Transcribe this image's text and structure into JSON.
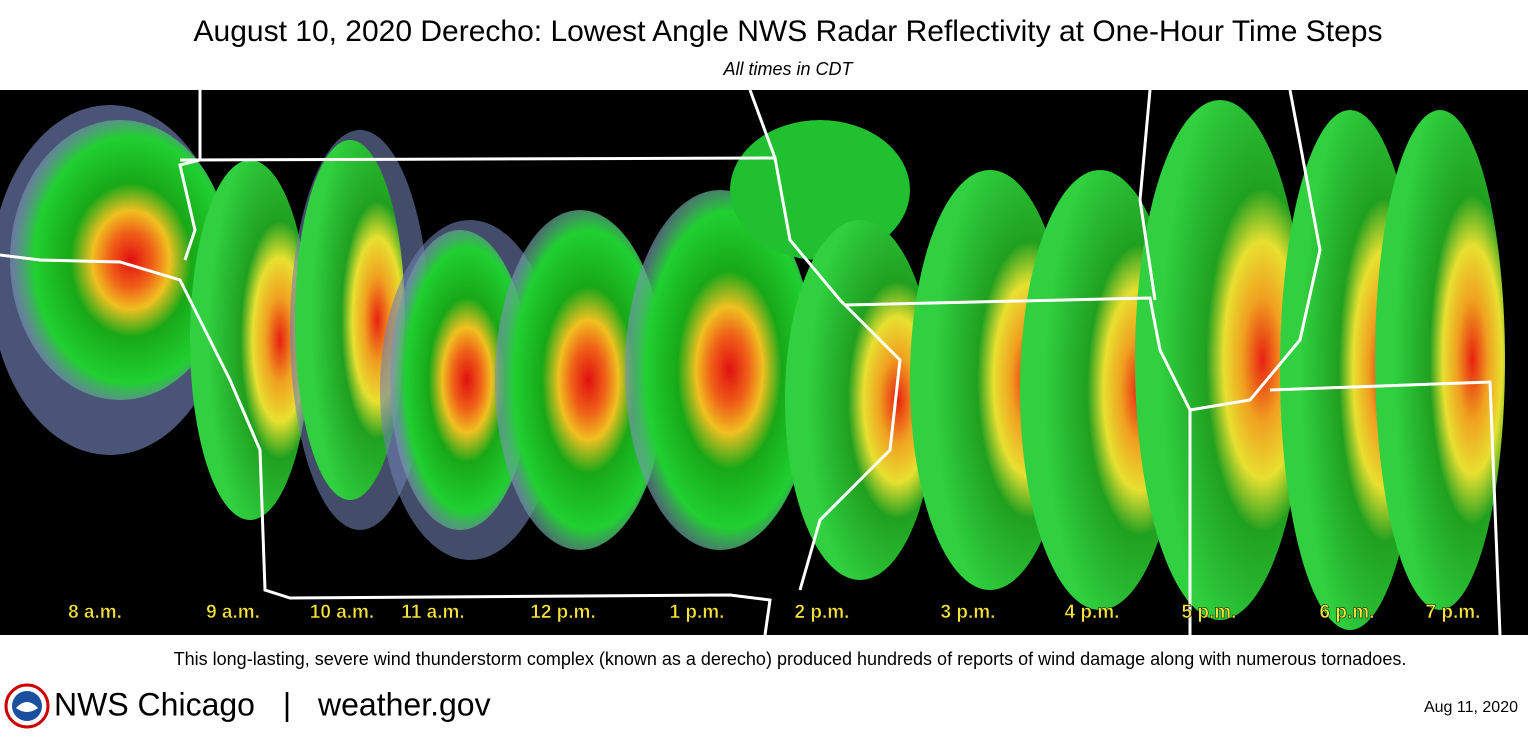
{
  "header": {
    "title": "August 10, 2020 Derecho:  Lowest Angle NWS Radar Reflectivity at One-Hour Time Steps",
    "subtitle": "All times in CDT"
  },
  "time_labels": [
    "8 a.m.",
    "9 a.m.",
    "10 a.m.",
    "11 a.m.",
    "12 p.m.",
    "1 p.m.",
    "2 p.m.",
    "3 p.m.",
    "4 p.m.",
    "5 p.m.",
    "6 p.m.",
    "7 p.m."
  ],
  "caption": "This long-lasting, severe wind thunderstorm complex (known as a derecho) produced hundreds of reports of wind damage along with numerous tornadoes.",
  "footer": {
    "office": "NWS Chicago",
    "separator": "|",
    "website": "weather.gov",
    "date": "Aug 11, 2020"
  }
}
